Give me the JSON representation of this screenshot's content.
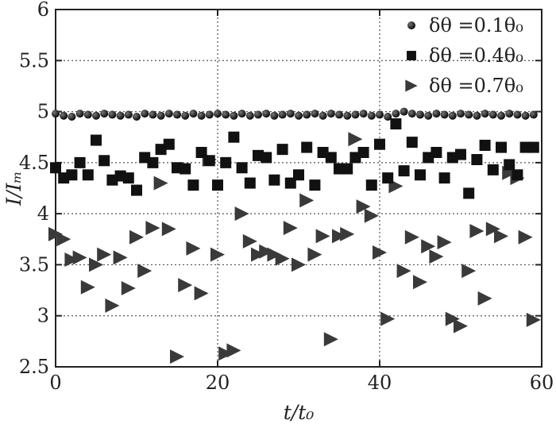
{
  "chart_data": {
    "type": "scatter",
    "xlabel": "t/t₀",
    "ylabel": "I/Iₘ",
    "xlim": [
      0,
      60
    ],
    "ylim": [
      2.5,
      6
    ],
    "xticks": [
      "0",
      "20",
      "40",
      "60"
    ],
    "yticks": [
      "2.5",
      "3",
      "3.5",
      "4",
      "4.5",
      "5",
      "5.5",
      "6"
    ],
    "grid": "dotted",
    "legend_position": "top-right",
    "series": [
      {
        "name": "δθ =0.1θ₀",
        "marker": "circle",
        "color": "#111111",
        "x": [
          0,
          1,
          2,
          3,
          4,
          5,
          6,
          7,
          8,
          9,
          10,
          11,
          12,
          13,
          14,
          15,
          16,
          17,
          18,
          19,
          20,
          21,
          22,
          23,
          24,
          25,
          26,
          27,
          28,
          29,
          30,
          31,
          32,
          33,
          34,
          35,
          36,
          37,
          38,
          39,
          40,
          41,
          42,
          43,
          44,
          45,
          46,
          47,
          48,
          49,
          50,
          51,
          52,
          53,
          54,
          55,
          56,
          57,
          58,
          59
        ],
        "y": [
          4.98,
          4.96,
          4.95,
          4.98,
          4.97,
          4.96,
          4.98,
          4.97,
          4.96,
          4.97,
          4.95,
          4.98,
          4.97,
          4.96,
          4.98,
          4.97,
          4.96,
          4.98,
          4.96,
          4.97,
          4.98,
          4.97,
          4.96,
          4.98,
          4.96,
          4.97,
          4.98,
          4.96,
          4.97,
          4.98,
          4.96,
          4.97,
          4.98,
          4.96,
          4.98,
          4.97,
          4.96,
          4.97,
          4.98,
          4.96,
          4.97,
          4.95,
          4.98,
          5.0,
          4.98,
          4.97,
          4.96,
          4.98,
          4.97,
          4.96,
          4.98,
          4.97,
          4.96,
          4.98,
          4.97,
          4.96,
          4.98,
          4.97,
          4.96,
          4.97
        ]
      },
      {
        "name": "δθ =0.4θ₀",
        "marker": "square",
        "color": "#111111",
        "x": [
          0,
          1,
          2,
          3,
          4,
          5,
          6,
          7,
          8,
          9,
          10,
          11,
          12,
          13,
          14,
          15,
          16,
          17,
          18,
          19,
          20,
          21,
          22,
          23,
          24,
          25,
          26,
          27,
          28,
          29,
          30,
          31,
          32,
          33,
          34,
          35,
          36,
          37,
          38,
          39,
          40,
          41,
          42,
          43,
          44,
          45,
          46,
          47,
          48,
          49,
          50,
          51,
          52,
          53,
          54,
          55,
          56,
          57,
          58,
          59
        ],
        "y": [
          4.45,
          4.35,
          4.38,
          4.5,
          4.38,
          4.72,
          4.52,
          4.33,
          4.37,
          4.35,
          4.23,
          4.55,
          4.5,
          4.63,
          4.68,
          4.45,
          4.44,
          4.28,
          4.6,
          4.52,
          4.28,
          4.5,
          4.75,
          4.45,
          4.3,
          4.57,
          4.55,
          4.33,
          4.63,
          4.3,
          4.38,
          4.65,
          4.28,
          4.6,
          4.55,
          4.44,
          4.44,
          4.55,
          4.6,
          4.28,
          4.68,
          4.35,
          4.88,
          4.42,
          4.7,
          4.38,
          4.55,
          4.6,
          4.35,
          4.55,
          4.58,
          4.2,
          4.53,
          4.67,
          4.43,
          4.65,
          4.48,
          4.38,
          4.65,
          4.65
        ]
      },
      {
        "name": "δθ =0.7θ₀",
        "marker": "triangle-right",
        "color": "#3a3a3a",
        "x": [
          0,
          1,
          2,
          3,
          4,
          5,
          6,
          7,
          8,
          9,
          10,
          11,
          12,
          13,
          14,
          15,
          16,
          17,
          18,
          19,
          20,
          21,
          22,
          23,
          24,
          25,
          26,
          27,
          28,
          29,
          30,
          31,
          32,
          33,
          34,
          35,
          36,
          37,
          38,
          39,
          40,
          41,
          42,
          43,
          44,
          45,
          46,
          47,
          48,
          49,
          50,
          51,
          52,
          53,
          54,
          55,
          56,
          57,
          58,
          59
        ],
        "y": [
          3.8,
          3.75,
          3.55,
          3.57,
          3.28,
          3.5,
          3.6,
          3.1,
          3.57,
          3.27,
          3.77,
          3.44,
          3.86,
          4.3,
          3.85,
          2.6,
          3.3,
          3.66,
          3.22,
          4.53,
          3.6,
          2.63,
          2.66,
          4.0,
          3.73,
          3.6,
          3.63,
          3.6,
          3.56,
          3.86,
          3.5,
          4.13,
          3.6,
          3.78,
          2.77,
          3.78,
          3.8,
          4.73,
          4.07,
          3.98,
          3.62,
          2.97,
          4.27,
          3.44,
          3.77,
          3.33,
          3.68,
          3.58,
          3.72,
          2.97,
          2.9,
          3.44,
          3.83,
          3.17,
          3.85,
          3.78,
          4.4,
          4.35,
          3.77,
          2.96
        ]
      }
    ]
  }
}
